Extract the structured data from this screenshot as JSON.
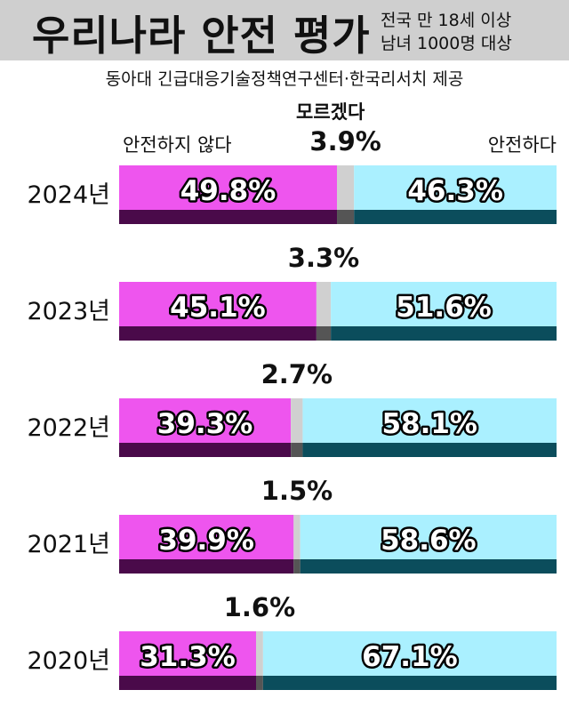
{
  "header": {
    "title": "우리나라 안전 평가",
    "subtitle_line1": "전국 만 18세 이상",
    "subtitle_line2": "남녀 1000명 대상"
  },
  "source": "동아대 긴급대응기술정책연구센터·한국리서치 제공",
  "legend": {
    "unsafe": "안전하지 않다",
    "dont_know": "모르겠다",
    "safe": "안전하다"
  },
  "colors": {
    "unsafe": "#ee55ee",
    "unsafe_dark": "#4a0a4a",
    "dont_know": "#d0d0d0",
    "dont_know_dark": "#555555",
    "safe": "#aaf0ff",
    "safe_dark": "#0b4d5c",
    "header_bg": "#cfcfcf"
  },
  "chart_data": {
    "type": "bar",
    "orientation": "horizontal",
    "stacked": true,
    "categories": [
      "2024년",
      "2023년",
      "2022년",
      "2021년",
      "2020년"
    ],
    "series": [
      {
        "name": "안전하지 않다",
        "values": [
          49.8,
          45.1,
          39.3,
          39.9,
          31.3
        ],
        "labels": [
          "49.8%",
          "45.1%",
          "39.3%",
          "39.9%",
          "31.3%"
        ]
      },
      {
        "name": "모르겠다",
        "values": [
          3.9,
          3.3,
          2.7,
          1.5,
          1.6
        ],
        "labels": [
          "3.9%",
          "3.3%",
          "2.7%",
          "1.5%",
          "1.6%"
        ]
      },
      {
        "name": "안전하다",
        "values": [
          46.3,
          51.6,
          58.1,
          58.6,
          67.1
        ],
        "labels": [
          "46.3%",
          "51.6%",
          "58.1%",
          "58.6%",
          "67.1%"
        ]
      }
    ],
    "xlim": [
      0,
      100
    ]
  }
}
